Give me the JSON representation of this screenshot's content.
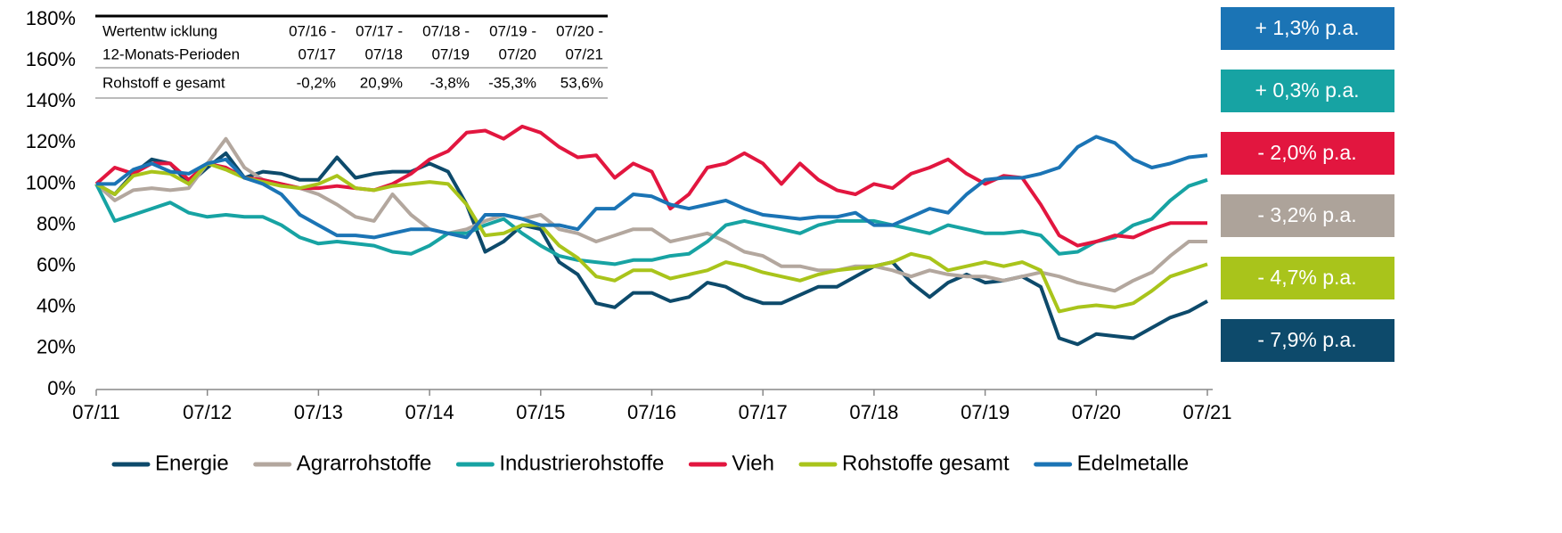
{
  "chart_data": {
    "type": "line",
    "x": [
      "07/11",
      null,
      null,
      null,
      null,
      null,
      "07/12",
      null,
      null,
      null,
      null,
      null,
      "07/13",
      null,
      null,
      null,
      null,
      null,
      "07/14",
      null,
      null,
      null,
      null,
      null,
      "07/15",
      null,
      null,
      null,
      null,
      null,
      "07/16",
      null,
      null,
      null,
      null,
      null,
      "07/17",
      null,
      null,
      null,
      null,
      null,
      "07/18",
      null,
      null,
      null,
      null,
      null,
      "07/19",
      null,
      null,
      null,
      null,
      null,
      "07/20",
      null,
      null,
      null,
      null,
      null,
      "07/21"
    ],
    "ylim": [
      0,
      180
    ],
    "yticks": [
      {
        "value": 0,
        "label": "0%"
      },
      {
        "value": 20,
        "label": "20%"
      },
      {
        "value": 40,
        "label": "40%"
      },
      {
        "value": 60,
        "label": "60%"
      },
      {
        "value": 80,
        "label": "80%"
      },
      {
        "value": 100,
        "label": "100%"
      },
      {
        "value": 120,
        "label": "120%"
      },
      {
        "value": 140,
        "label": "140%"
      },
      {
        "value": 160,
        "label": "160%"
      },
      {
        "value": 180,
        "label": "180%"
      }
    ],
    "series": [
      {
        "name": "Energie",
        "color": "#0d4a6b",
        "values": [
          100,
          95,
          105,
          112,
          110,
          100,
          108,
          115,
          103,
          106,
          105,
          102,
          102,
          113,
          103,
          105,
          106,
          106,
          110,
          106,
          90,
          67,
          72,
          80,
          78,
          62,
          56,
          42,
          40,
          47,
          47,
          43,
          45,
          52,
          50,
          45,
          42,
          42,
          46,
          50,
          50,
          55,
          60,
          62,
          52,
          45,
          52,
          56,
          52,
          53,
          55,
          50,
          25,
          22,
          27,
          26,
          25,
          30,
          35,
          38,
          43
        ]
      },
      {
        "name": "Agrarrohstoffe",
        "color": "#b3a79e",
        "values": [
          100,
          92,
          97,
          98,
          97,
          98,
          110,
          122,
          108,
          102,
          100,
          98,
          95,
          90,
          84,
          82,
          95,
          85,
          78,
          76,
          78,
          82,
          85,
          83,
          85,
          78,
          76,
          72,
          75,
          78,
          78,
          72,
          74,
          76,
          72,
          67,
          65,
          60,
          60,
          58,
          58,
          60,
          60,
          58,
          55,
          58,
          56,
          55,
          55,
          53,
          55,
          57,
          55,
          52,
          50,
          48,
          53,
          57,
          65,
          72,
          72
        ]
      },
      {
        "name": "Industrierohstoffe",
        "color": "#17a3a3",
        "values": [
          100,
          82,
          85,
          88,
          91,
          86,
          84,
          85,
          84,
          84,
          80,
          74,
          71,
          72,
          71,
          70,
          67,
          66,
          70,
          76,
          76,
          80,
          83,
          76,
          70,
          65,
          63,
          62,
          61,
          63,
          63,
          65,
          66,
          72,
          80,
          82,
          80,
          78,
          76,
          80,
          82,
          82,
          82,
          80,
          78,
          76,
          80,
          78,
          76,
          76,
          77,
          75,
          66,
          67,
          72,
          74,
          80,
          83,
          92,
          99,
          102
        ]
      },
      {
        "name": "Vieh",
        "color": "#e2163f",
        "values": [
          100,
          108,
          105,
          110,
          110,
          102,
          110,
          108,
          103,
          102,
          100,
          98,
          98,
          99,
          98,
          97,
          100,
          105,
          112,
          116,
          125,
          126,
          122,
          128,
          125,
          118,
          113,
          114,
          103,
          110,
          106,
          88,
          95,
          108,
          110,
          115,
          110,
          100,
          110,
          102,
          97,
          95,
          100,
          98,
          105,
          108,
          112,
          105,
          100,
          104,
          103,
          90,
          75,
          70,
          72,
          75,
          74,
          78,
          81,
          81,
          81
        ]
      },
      {
        "name": "Rohstoffe gesamt",
        "color": "#a9c41b",
        "values": [
          100,
          95,
          104,
          106,
          105,
          100,
          110,
          107,
          103,
          101,
          99,
          98,
          100,
          104,
          98,
          97,
          99,
          100,
          101,
          100,
          90,
          75,
          76,
          80,
          80,
          70,
          64,
          55,
          53,
          58,
          58,
          54,
          56,
          58,
          62,
          60,
          57,
          55,
          53,
          56,
          58,
          59,
          60,
          62,
          66,
          64,
          58,
          60,
          62,
          60,
          62,
          58,
          38,
          40,
          41,
          40,
          42,
          48,
          55,
          58,
          61
        ]
      },
      {
        "name": "Edelmetalle",
        "color": "#1b74b5",
        "values": [
          100,
          100,
          107,
          110,
          106,
          105,
          110,
          112,
          103,
          100,
          95,
          85,
          80,
          75,
          75,
          74,
          76,
          78,
          78,
          76,
          74,
          85,
          85,
          83,
          80,
          80,
          78,
          88,
          88,
          95,
          94,
          90,
          88,
          90,
          92,
          88,
          85,
          84,
          83,
          84,
          84,
          86,
          80,
          80,
          84,
          88,
          86,
          95,
          102,
          103,
          103,
          105,
          108,
          118,
          123,
          120,
          112,
          108,
          110,
          113,
          114
        ]
      }
    ],
    "table": {
      "header": [
        [
          "Wertentw icklung",
          "07/16 -",
          "07/17 -",
          "07/18 -",
          "07/19 -",
          "07/20 -"
        ],
        [
          "12-Monats-Perioden",
          "07/17",
          "07/18",
          "07/19",
          "07/20",
          "07/21"
        ]
      ],
      "rows": [
        [
          "Rohstoff e gesamt",
          "-0,2%",
          "20,9%",
          "-3,8%",
          "-35,3%",
          "53,6%"
        ]
      ]
    },
    "annotations": [
      {
        "text": "+ 1,3% p.a.",
        "color": "#1b74b5"
      },
      {
        "text": "+ 0,3% p.a.",
        "color": "#17a3a3"
      },
      {
        "text": "- 2,0% p.a.",
        "color": "#e2163f"
      },
      {
        "text": "- 3,2% p.a.",
        "color": "#ada39a"
      },
      {
        "text": "- 4,7% p.a.",
        "color": "#a9c41b"
      },
      {
        "text": "- 7,9% p.a.",
        "color": "#0d4a6b"
      }
    ]
  }
}
